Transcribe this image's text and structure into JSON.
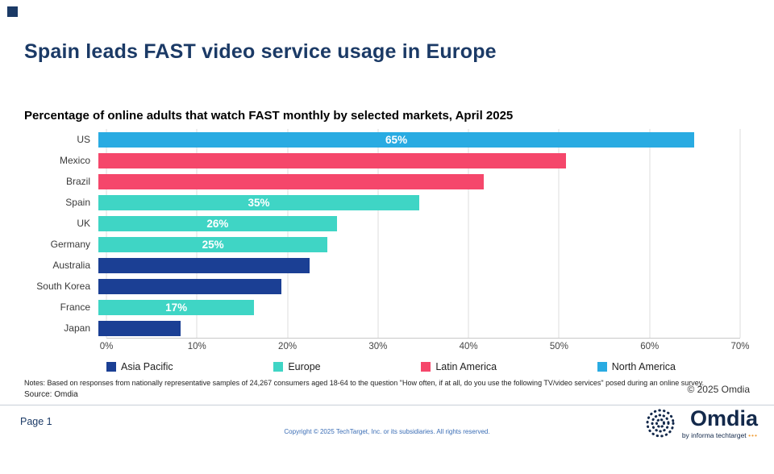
{
  "header": {
    "title": "Spain leads FAST video service usage in Europe"
  },
  "chart_data": {
    "type": "bar",
    "orientation": "horizontal",
    "title": "Percentage of online adults that watch FAST monthly by selected markets, April 2025",
    "xlim": [
      0,
      70
    ],
    "x_tick_labels": [
      "0%",
      "10%",
      "20%",
      "30%",
      "40%",
      "50%",
      "60%",
      "70%"
    ],
    "categories": [
      "US",
      "Mexico",
      "Brazil",
      "Spain",
      "UK",
      "Germany",
      "Australia",
      "South Korea",
      "France",
      "Japan"
    ],
    "values": [
      65,
      51,
      42,
      35,
      26,
      25,
      23,
      20,
      17,
      9
    ],
    "regions": [
      "North America",
      "Latin America",
      "Latin America",
      "Europe",
      "Europe",
      "Europe",
      "Asia Pacific",
      "Asia Pacific",
      "Europe",
      "Asia Pacific"
    ],
    "bar_labels": [
      "65%",
      "",
      "",
      "35%",
      "26%",
      "25%",
      "",
      "",
      "17%",
      ""
    ],
    "region_colors": {
      "Asia Pacific": "#1B3F94",
      "Europe": "#3FD5C5",
      "Latin America": "#F5476B",
      "North America": "#29ABE2"
    },
    "legend": [
      "Asia Pacific",
      "Europe",
      "Latin America",
      "North America"
    ],
    "legend_position": "bottom",
    "grid": "vertical"
  },
  "notes": {
    "line1": "Notes: Based on responses from nationally representative samples of 24,267 consumers aged 18-64 to the question \"How often, if at all, do you use the following TV/video services\" posed during an online survey.",
    "source": "Source: Omdia",
    "copyright": "© 2025 Omdia"
  },
  "footer": {
    "page_label": "Page 1",
    "copyright": "Copyright © 2025 TechTarget, Inc. or its subsidiaries. All rights reserved.",
    "logo_text": "Omdia",
    "logo_sub": "by informa techtarget",
    "logo_dots": "•••"
  }
}
